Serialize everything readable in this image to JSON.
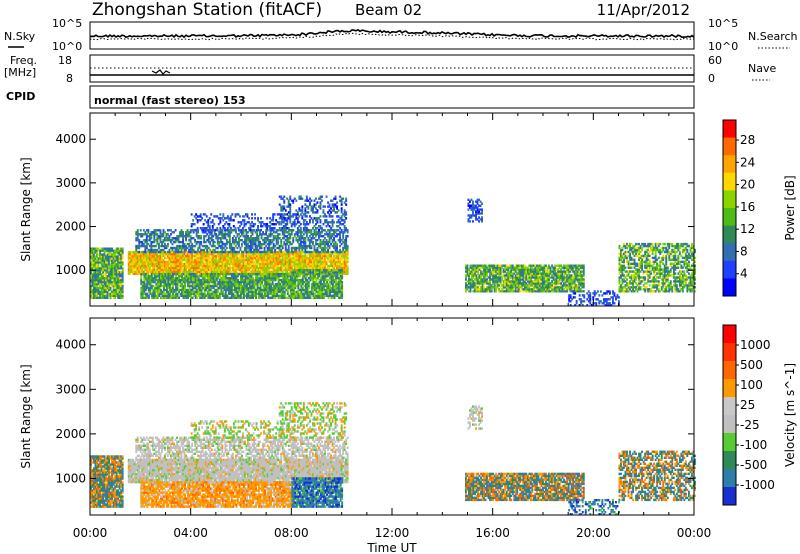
{
  "header": {
    "title": "Zhongshan Station (fitACF)",
    "beam": "Beam 02",
    "date": "11/Apr/2012"
  },
  "noise_panel": {
    "left_label": "N.Sky",
    "right_label": "N.Search",
    "left_ticks": [
      "10^5",
      "10^0"
    ],
    "right_ticks": [
      "10^5",
      "10^0"
    ]
  },
  "freq_panel": {
    "left_label_1": "Freq.",
    "left_label_2": "[MHz]",
    "right_label": "Nave",
    "left_ticks": [
      "18",
      "8"
    ],
    "right_ticks": [
      "60",
      "0"
    ]
  },
  "cpid": {
    "label": "CPID",
    "mode": "normal (fast stereo) 153"
  },
  "chart_data": [
    {
      "type": "heatmap",
      "name": "power",
      "ylabel": "Slant Range [km]",
      "xlabel": "Time UT",
      "x_ticks": [
        "00:00",
        "04:00",
        "08:00",
        "12:00",
        "16:00",
        "20:00",
        "00:00"
      ],
      "x_hours": [
        0,
        4,
        8,
        12,
        16,
        20,
        24
      ],
      "y_ticks": [
        1000,
        2000,
        3000,
        4000
      ],
      "ylim": [
        180,
        4600
      ],
      "xlim": [
        0,
        24
      ],
      "colorbar": {
        "label": "Power [dB]",
        "ticks": [
          "4",
          "8",
          "12",
          "16",
          "20",
          "24",
          "28"
        ],
        "colors": [
          "#0000ff",
          "#2040ff",
          "#3070b0",
          "#2e8b57",
          "#4cbb17",
          "#8ad400",
          "#ffd700",
          "#ffa500",
          "#ff6a00",
          "#ff0000"
        ]
      }
    },
    {
      "type": "heatmap",
      "name": "velocity",
      "ylabel": "Slant Range [km]",
      "xlabel": "Time UT",
      "x_ticks": [
        "00:00",
        "04:00",
        "08:00",
        "12:00",
        "16:00",
        "20:00",
        "00:00"
      ],
      "x_hours": [
        0,
        4,
        8,
        12,
        16,
        20,
        24
      ],
      "y_ticks": [
        1000,
        2000,
        3000,
        4000
      ],
      "ylim": [
        180,
        4600
      ],
      "xlim": [
        0,
        24
      ],
      "colorbar": {
        "label": "Velocity [m s^-1]",
        "ticks": [
          "1000",
          "500",
          "100",
          "25",
          "-25",
          "-100",
          "-500",
          "-1000"
        ],
        "colors": [
          "#1a2fcf",
          "#2d7fa8",
          "#2e8b57",
          "#55cc33",
          "#c0c0c0",
          "#c8c8c8",
          "#ff9900",
          "#ff6600",
          "#ff3300",
          "#ff0000"
        ]
      }
    }
  ],
  "colors": {
    "ground_scatter": "#c0c0c0"
  }
}
